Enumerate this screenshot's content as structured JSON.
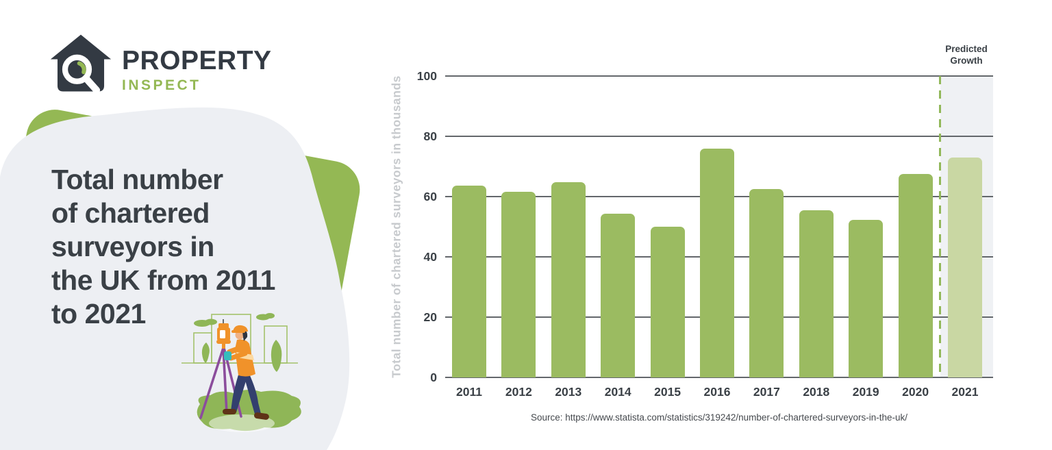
{
  "logo": {
    "brand_primary": "PROPERTY",
    "brand_secondary": "INSPECT"
  },
  "headline": {
    "title": "Total number\nof chartered\nsurveyors in\nthe UK from 2011\nto 2021"
  },
  "chart_data": {
    "type": "bar",
    "title": "Total number of chartered surveyors in the UK from 2011 to 2021",
    "categories": [
      "2011",
      "2012",
      "2013",
      "2014",
      "2015",
      "2016",
      "2017",
      "2018",
      "2019",
      "2020",
      "2021"
    ],
    "values": [
      63.6,
      61.6,
      64.7,
      54.4,
      50.0,
      75.9,
      62.6,
      55.4,
      52.3,
      67.5,
      73.0
    ],
    "predicted": {
      "index": 10,
      "label": "Predicted\nGrowth"
    },
    "xlabel": "",
    "ylabel": "Total number of chartered surveyors in thousands",
    "ylim": [
      0,
      100
    ],
    "yticks": [
      0,
      20,
      40,
      60,
      80,
      100
    ],
    "grid": true,
    "legend_position": "none"
  },
  "source_line": "Source: https://www.statista.com/statistics/319242/number-of-chartered-surveyors-in-the-uk/",
  "colors": {
    "bar": "#9bbb61",
    "predicted_bar": "#c9d7a3",
    "predicted_region": "#eff1f4",
    "gridline": "#63676b",
    "dashed_line": "#92b85a",
    "text_dark": "#3a4046",
    "axis_title": "#c7cacd",
    "logo_dark": "#333a43",
    "brand_green": "#94b854",
    "panel_gray": "#edeff3",
    "illustration_orange": "#f0922a",
    "illustration_navy": "#333f6e",
    "illustration_purple": "#8b4d9c",
    "illustration_teal": "#35bdbd"
  }
}
